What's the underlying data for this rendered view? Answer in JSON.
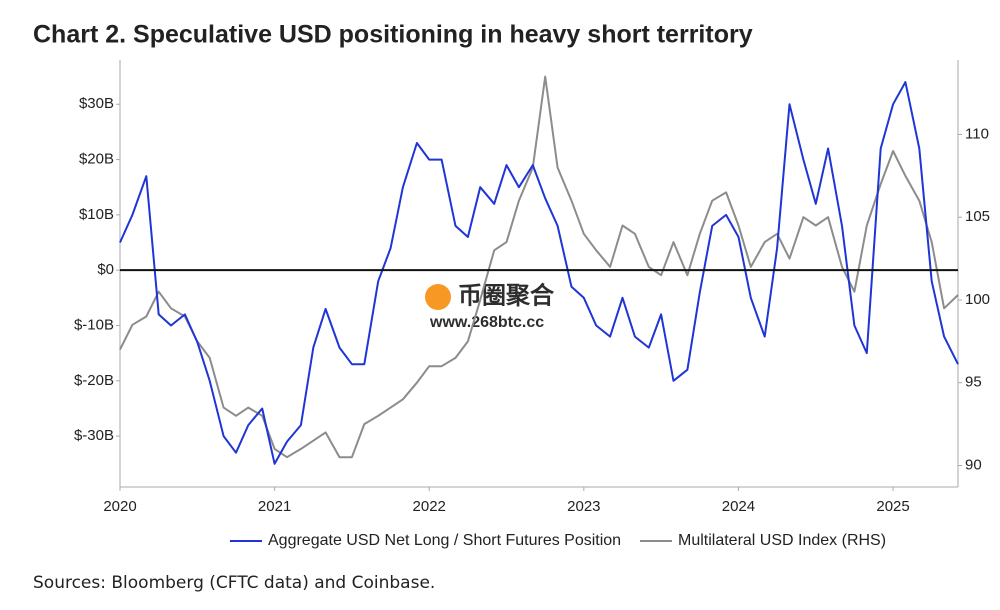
{
  "chart_data": {
    "type": "line",
    "title": "Chart 2. Speculative USD positioning in heavy short territory",
    "source": "Sources: Bloomberg (CFTC data) and Coinbase.",
    "watermark": {
      "name": "币圈聚合",
      "url": "www.268btc.cc"
    },
    "x": [
      2020,
      2020.08,
      2020.17,
      2020.25,
      2020.33,
      2020.42,
      2020.5,
      2020.58,
      2020.67,
      2020.75,
      2020.83,
      2020.92,
      2021,
      2021.08,
      2021.17,
      2021.25,
      2021.33,
      2021.42,
      2021.5,
      2021.58,
      2021.67,
      2021.75,
      2021.83,
      2021.92,
      2022,
      2022.08,
      2022.17,
      2022.25,
      2022.33,
      2022.42,
      2022.5,
      2022.58,
      2022.67,
      2022.75,
      2022.83,
      2022.92,
      2023,
      2023.08,
      2023.17,
      2023.25,
      2023.33,
      2023.42,
      2023.5,
      2023.58,
      2023.67,
      2023.75,
      2023.83,
      2023.92,
      2024,
      2024.08,
      2024.17,
      2024.25,
      2024.33,
      2024.42,
      2024.5,
      2024.58,
      2024.67,
      2024.75,
      2024.83,
      2024.92,
      2025,
      2025.08,
      2025.17,
      2025.25,
      2025.33,
      2025.42
    ],
    "xlim": [
      2020,
      2025.42
    ],
    "xticks": [
      2020,
      2021,
      2022,
      2023,
      2024,
      2025
    ],
    "ylim": [
      -39.2,
      38
    ],
    "yticks": [
      {
        "value": -30,
        "label": "$-30B"
      },
      {
        "value": -20,
        "label": "$-20B"
      },
      {
        "value": -10,
        "label": "$-10B"
      },
      {
        "value": 0,
        "label": "$0"
      },
      {
        "value": 10,
        "label": "$10B"
      },
      {
        "value": 20,
        "label": "$20B"
      },
      {
        "value": 30,
        "label": "$30B"
      }
    ],
    "y2lim": [
      88.7,
      114.5
    ],
    "y2ticks": [
      90,
      95,
      100,
      105,
      110
    ],
    "zero_line": true,
    "grid": false,
    "legend": "bottom",
    "series": [
      {
        "name": "Aggregate USD Net Long / Short Futures Position",
        "color": "#1f35d6",
        "values": [
          5,
          10,
          17,
          -8,
          -10,
          -8,
          -13,
          -20,
          -30,
          -33,
          -28,
          -25,
          -35,
          -31,
          -28,
          -14,
          -7,
          -14,
          -17,
          -17,
          -2,
          4,
          15,
          23,
          20,
          20,
          8,
          6,
          15,
          12,
          19,
          15,
          19,
          13,
          8,
          -3,
          -5,
          -10,
          -12,
          -5,
          -12,
          -14,
          -8,
          -20,
          -18,
          -4,
          8,
          10,
          6,
          -5,
          -12,
          4,
          30,
          20,
          12,
          22,
          8,
          -10,
          -15,
          22,
          30,
          34,
          22,
          -2,
          -12,
          -17
        ]
      },
      {
        "name": "Multilateral USD Index (RHS)",
        "color": "#8c8c8c",
        "axis": "y2",
        "values": [
          97,
          98.5,
          99,
          100.5,
          99.5,
          99,
          97.5,
          96.5,
          93.5,
          93,
          93.5,
          93,
          91,
          90.5,
          91,
          91.5,
          92,
          90.5,
          90.5,
          92.5,
          93,
          93.5,
          94,
          95,
          96,
          96,
          96.5,
          97.5,
          100,
          103,
          103.5,
          106,
          108,
          113.5,
          108,
          106,
          104,
          103,
          102,
          104.5,
          104,
          102,
          101.5,
          103.5,
          101.5,
          104,
          106,
          106.5,
          104.5,
          102,
          103.5,
          104,
          102.5,
          105,
          104.5,
          105,
          102,
          100.5,
          104.5,
          107,
          109,
          107.5,
          106,
          103.5,
          99.5,
          100.3
        ]
      }
    ]
  }
}
